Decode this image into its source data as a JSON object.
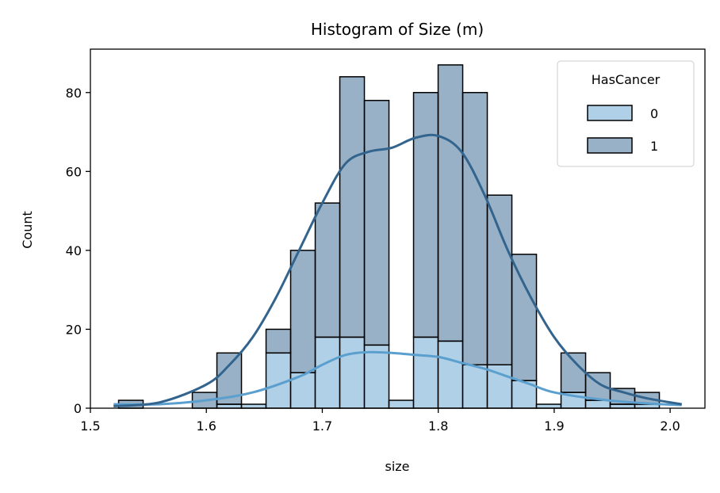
{
  "chart_data": {
    "type": "histogram",
    "title": "Histogram of Size (m)",
    "xlabel": "size",
    "ylabel": "Count",
    "xlim": [
      1.5,
      2.03
    ],
    "ylim": [
      0,
      91
    ],
    "xticks": [
      "1.5",
      "1.6",
      "1.7",
      "1.8",
      "1.9",
      "2.0"
    ],
    "yticks": [
      "0",
      "20",
      "40",
      "60",
      "80"
    ],
    "grid": false,
    "stacked": true,
    "legend": {
      "title": "HasCancer",
      "position": "top-right",
      "entries": [
        "0",
        "1"
      ]
    },
    "colors": {
      "series_0": "#a6cbe3",
      "series_1": "#32648e",
      "kde_0": "#5b9fcf",
      "kde_1": "#32648e",
      "edge": "#000000"
    },
    "bin_edges": [
      1.5243,
      1.5455,
      1.5667,
      1.5879,
      1.6091,
      1.6303,
      1.6515,
      1.6727,
      1.6939,
      1.7151,
      1.7363,
      1.7575,
      1.7787,
      1.7999,
      1.8211,
      1.8423,
      1.8635,
      1.8847,
      1.9059,
      1.9271,
      1.9483,
      1.9695,
      1.9907
    ],
    "series": [
      {
        "name": "0",
        "values": [
          0,
          0,
          0,
          0,
          1,
          1,
          14,
          9,
          18,
          18,
          16,
          2,
          18,
          17,
          11,
          11,
          7,
          1,
          4,
          2,
          1,
          1
        ]
      },
      {
        "name": "1",
        "values": [
          2,
          0,
          0,
          4,
          13,
          0,
          6,
          31,
          34,
          66,
          62,
          0,
          62,
          70,
          69,
          43,
          32,
          0,
          10,
          7,
          4,
          3
        ]
      }
    ],
    "kde": [
      {
        "name": "0",
        "x": [
          1.52,
          1.56,
          1.6,
          1.64,
          1.68,
          1.7,
          1.72,
          1.74,
          1.76,
          1.78,
          1.8,
          1.82,
          1.84,
          1.86,
          1.88,
          1.9,
          1.94,
          1.98,
          2.01
        ],
        "y": [
          1,
          1,
          2,
          4,
          8,
          11,
          13.5,
          14.2,
          14,
          13.5,
          13,
          11.5,
          10,
          8,
          6,
          4,
          2.2,
          1.2,
          0.8
        ]
      },
      {
        "name": "1",
        "x": [
          1.52,
          1.56,
          1.6,
          1.62,
          1.64,
          1.66,
          1.68,
          1.7,
          1.72,
          1.74,
          1.76,
          1.78,
          1.8,
          1.82,
          1.84,
          1.86,
          1.88,
          1.9,
          1.92,
          1.94,
          1.96,
          1.98,
          2.01
        ],
        "y": [
          0.5,
          1.5,
          6,
          11,
          18,
          28,
          40,
          52,
          62,
          65,
          66,
          68.5,
          69,
          65,
          54,
          40,
          28,
          18,
          11,
          6,
          4,
          2.5,
          1
        ]
      }
    ]
  }
}
